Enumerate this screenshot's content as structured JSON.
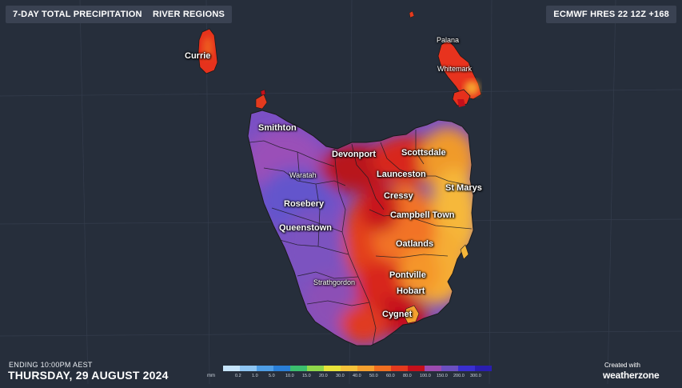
{
  "header": {
    "product_title": "7-DAY TOTAL PRECIPITATION",
    "layer_button": "RIVER REGIONS",
    "model_run": "ECMWF HRES 22 12Z +168"
  },
  "towns": {
    "currie": "Currie",
    "palana": "Palana",
    "whitemark": "Whitemark",
    "smithton": "Smithton",
    "devonport": "Devonport",
    "scottsdale": "Scottsdale",
    "waratah": "Waratah",
    "launceston": "Launceston",
    "cressy": "Cressy",
    "st_marys": "St Marys",
    "rosebery": "Rosebery",
    "campbell_town": "Campbell Town",
    "queenstown": "Queenstown",
    "oatlands": "Oatlands",
    "pontville": "Pontville",
    "strathgordon": "Strathgordon",
    "hobart": "Hobart",
    "cygnet": "Cygnet"
  },
  "footer": {
    "ending_label": "ENDING 10:00PM AEST",
    "date": "THURSDAY, 29 AUGUST 2024",
    "credit": "Created with",
    "brand": "weatherzone"
  },
  "legend": {
    "unit": "mm",
    "ticks": [
      "0.2",
      "1.0",
      "5.0",
      "10.0",
      "15.0",
      "20.0",
      "30.0",
      "40.0",
      "50.0",
      "60.0",
      "80.0",
      "100.0",
      "150.0",
      "200.0",
      "300.0"
    ],
    "colors": [
      "#c6e4fb",
      "#8fc6f3",
      "#4f9ee6",
      "#2a7fd8",
      "#3bbf6e",
      "#8fd84a",
      "#e9e43a",
      "#f5c23a",
      "#f5a02f",
      "#f06f21",
      "#e33a1e",
      "#c4101b",
      "#9c4bb0",
      "#6c4fc0",
      "#3a2fd0",
      "#2a1eb0"
    ]
  },
  "map_colors": {
    "background": "#262e3b",
    "heavy_purple": "#8a52c0",
    "violet": "#6a55c8",
    "red": "#d8261c",
    "dark_red": "#c4101b",
    "orange": "#f0712a",
    "amber": "#f5a02f",
    "yellow": "#f6c33a"
  }
}
